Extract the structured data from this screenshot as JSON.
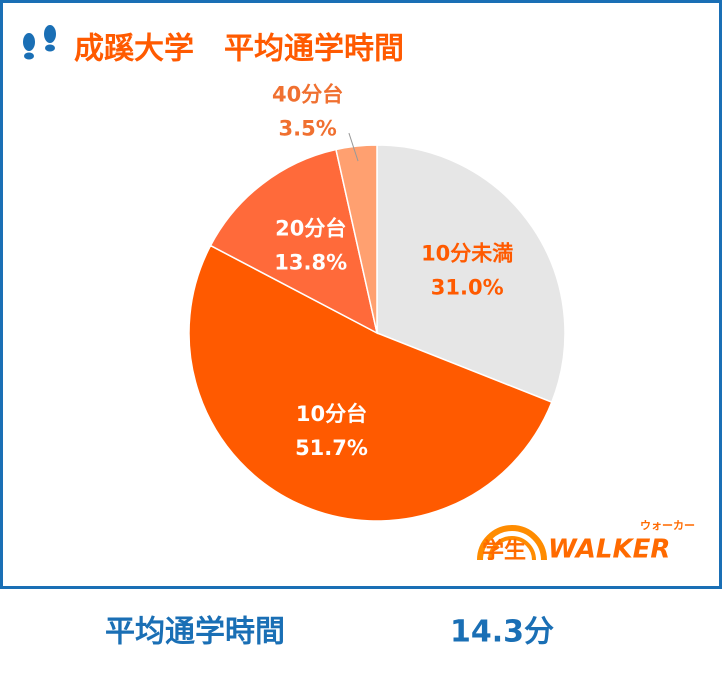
{
  "chart_data": {
    "type": "pie",
    "title": "成蹊大学　平均通学時間",
    "categories": [
      "10分未満",
      "10分台",
      "20分台",
      "40分台"
    ],
    "values": [
      31.0,
      51.7,
      13.8,
      3.5
    ],
    "value_labels": [
      "31.0%",
      "51.7%",
      "13.8%",
      "3.5%"
    ],
    "colors": [
      "#e6e6e6",
      "#ff5a00",
      "#ff6a3a",
      "#ffa070"
    ]
  },
  "summary": {
    "label": "平均通学時間",
    "value": "14.3分"
  },
  "logo": {
    "text": "学生",
    "brand": "WALKER",
    "ruby": "ウォーカー"
  }
}
